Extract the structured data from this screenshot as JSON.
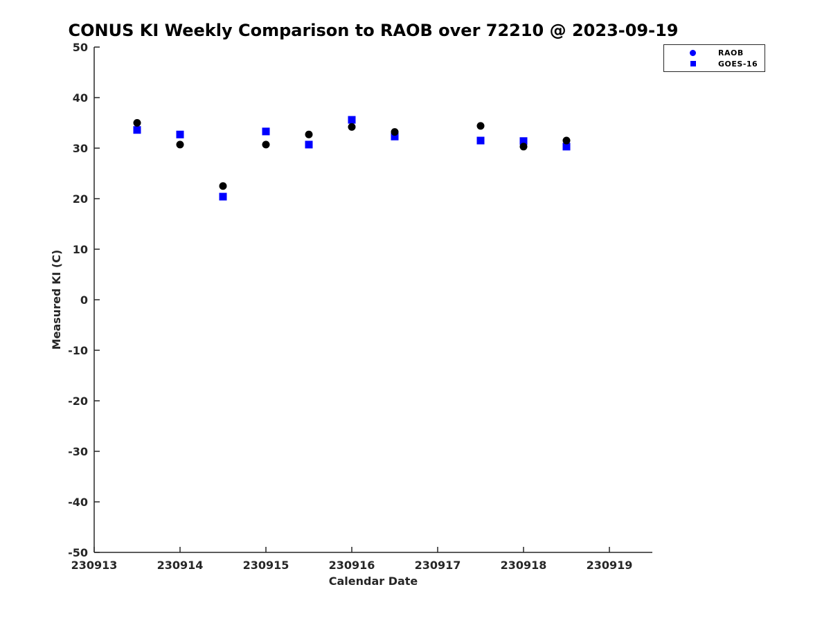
{
  "title": "CONUS KI Weekly Comparison to RAOB over 72210 @ 2023-09-19",
  "colors": {
    "raob_marker": "#000000",
    "goes16_marker": "#0000ff",
    "legend_marker": "#0000ff",
    "axis": "#262626",
    "title_text": "#000000"
  },
  "legend": {
    "items": [
      {
        "label": "RAOB",
        "marker": "circle"
      },
      {
        "label": "GOES-16",
        "marker": "square"
      }
    ]
  },
  "chart_data": {
    "type": "scatter",
    "title": "CONUS KI Weekly Comparison to RAOB over 72210 @ 2023-09-19",
    "xlabel": "Calendar Date",
    "ylabel": "Measured KI (C)",
    "xlim": [
      230913,
      230919.5
    ],
    "ylim": [
      -50,
      50
    ],
    "x_ticks": [
      230913,
      230914,
      230915,
      230916,
      230917,
      230918,
      230919
    ],
    "y_ticks": [
      -50,
      -40,
      -30,
      -20,
      -10,
      0,
      10,
      20,
      30,
      40,
      50
    ],
    "grid": false,
    "legend_position": "northeast-outside",
    "x": [
      230913.5,
      230914,
      230914.5,
      230915,
      230915.5,
      230916,
      230916.5,
      230917.5,
      230918,
      230918.5
    ],
    "series": [
      {
        "name": "RAOB",
        "marker": "circle",
        "color": "#000000",
        "values": [
          35.0,
          30.7,
          22.5,
          30.7,
          32.7,
          34.2,
          33.2,
          34.4,
          30.3,
          31.5
        ]
      },
      {
        "name": "GOES-16",
        "marker": "square",
        "color": "#0000ff",
        "values": [
          33.6,
          32.7,
          20.4,
          33.3,
          30.7,
          35.6,
          32.3,
          31.5,
          31.4,
          30.3
        ]
      }
    ]
  }
}
